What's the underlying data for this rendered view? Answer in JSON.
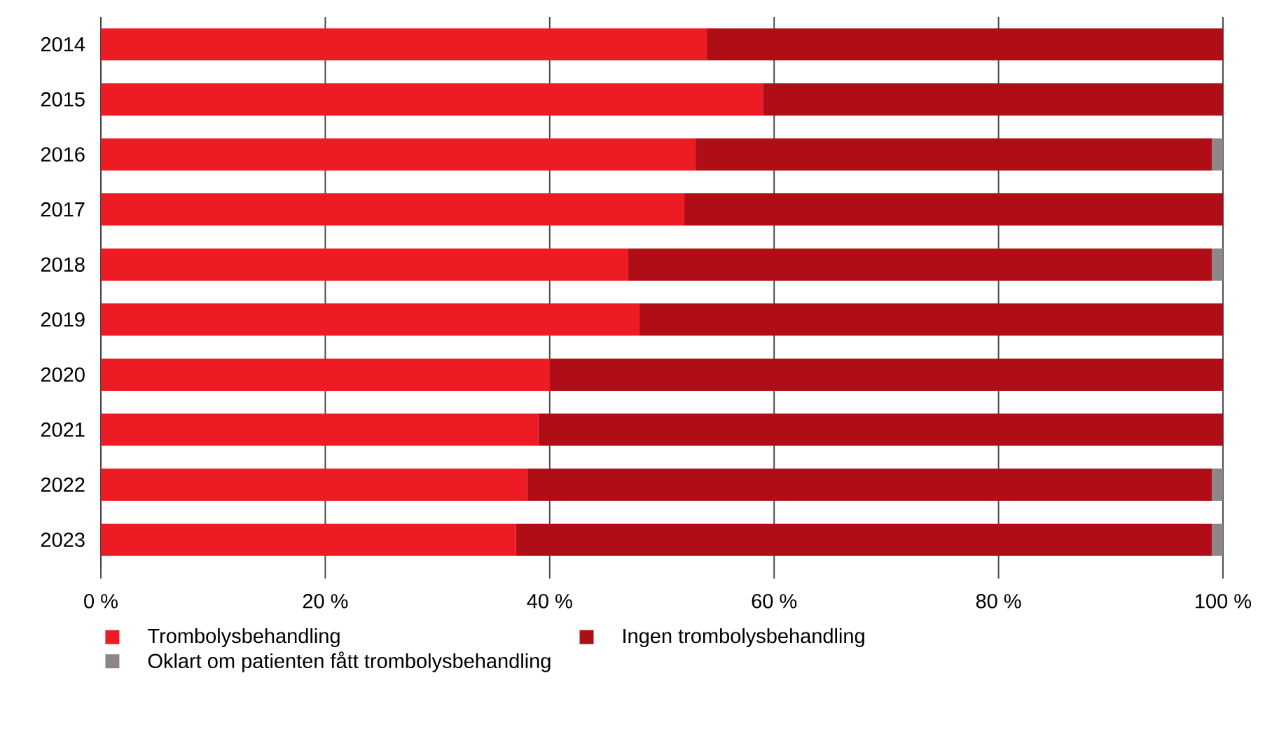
{
  "chart_data": {
    "type": "bar",
    "orientation": "horizontal",
    "stacked": true,
    "categories": [
      "2014",
      "2015",
      "2016",
      "2017",
      "2018",
      "2019",
      "2020",
      "2021",
      "2022",
      "2023"
    ],
    "series": [
      {
        "name": "Trombolysbehandling",
        "color": "#ed1c24",
        "values": [
          54,
          59,
          53,
          52,
          47,
          48,
          40,
          39,
          38,
          37
        ]
      },
      {
        "name": "Ingen trombolysbehandling",
        "color": "#b00e16",
        "values": [
          46,
          41,
          46,
          48,
          52,
          52,
          60,
          61,
          61,
          62
        ]
      },
      {
        "name": "Oklart om patienten fått trombolysbehandling",
        "color": "#8c8784",
        "values": [
          0,
          0,
          1,
          0,
          1,
          0,
          0,
          0,
          1,
          1
        ]
      }
    ],
    "xlim": [
      0,
      100
    ],
    "xticks": [
      {
        "value": 0,
        "label": "0 %"
      },
      {
        "value": 20,
        "label": "20 %"
      },
      {
        "value": 40,
        "label": "40 %"
      },
      {
        "value": 60,
        "label": "60 %"
      },
      {
        "value": 80,
        "label": "80 %"
      },
      {
        "value": 100,
        "label": "100 %"
      }
    ],
    "grid": "x",
    "legend": "bottom"
  }
}
